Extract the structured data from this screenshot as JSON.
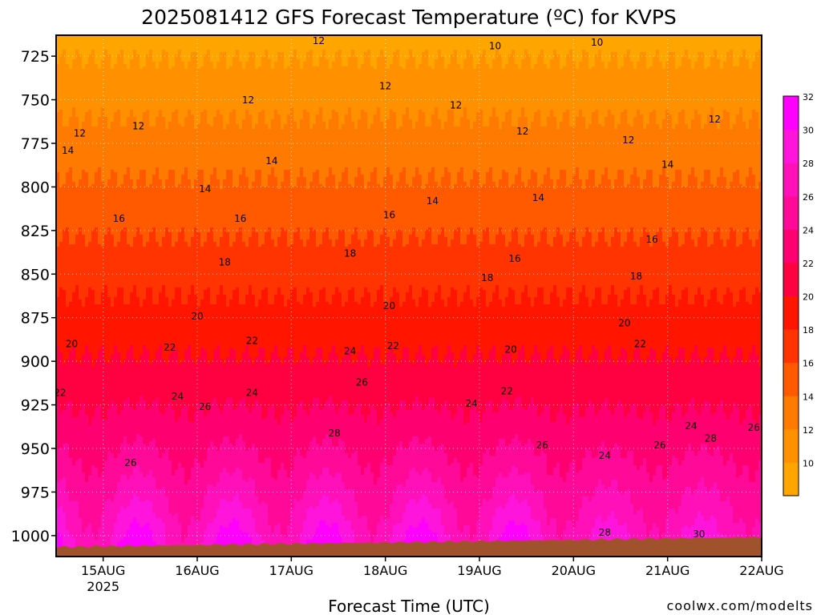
{
  "chart_data": {
    "type": "heatmap",
    "title": "2025081412 GFS Forecast Temperature (ºC) for KVPS",
    "xlabel": "Forecast Time (UTC)",
    "ylabel": "",
    "x_ticks": [
      {
        "label": "15AUG",
        "sub": "2025",
        "hours_since_init": 12
      },
      {
        "label": "16AUG",
        "sub": "",
        "hours_since_init": 36
      },
      {
        "label": "17AUG",
        "sub": "",
        "hours_since_init": 60
      },
      {
        "label": "18AUG",
        "sub": "",
        "hours_since_init": 84
      },
      {
        "label": "19AUG",
        "sub": "",
        "hours_since_init": 108
      },
      {
        "label": "20AUG",
        "sub": "",
        "hours_since_init": 132
      },
      {
        "label": "21AUG",
        "sub": "",
        "hours_since_init": 156
      },
      {
        "label": "22AUG",
        "sub": "",
        "hours_since_init": 180
      }
    ],
    "xlim_hours": [
      0,
      180
    ],
    "y_ticks": [
      725,
      750,
      775,
      800,
      825,
      850,
      875,
      900,
      925,
      950,
      975,
      1000
    ],
    "ylim": [
      1012,
      713
    ],
    "grid": true,
    "colorbar": {
      "labels": [
        10,
        12,
        14,
        16,
        18,
        20,
        22,
        24,
        26,
        28,
        30,
        32
      ],
      "colors": [
        "#ffa500",
        "#ff9100",
        "#ff7a00",
        "#ff5a00",
        "#ff3400",
        "#ff1500",
        "#ff0040",
        "#ff0070",
        "#ff0a98",
        "#ff10b8",
        "#ff14dc",
        "#ff00ff"
      ]
    },
    "contour_labels": [
      {
        "v": "12",
        "h": 67,
        "p": 718
      },
      {
        "v": "10",
        "h": 112,
        "p": 721
      },
      {
        "v": "10",
        "h": 138,
        "p": 719
      },
      {
        "v": "12",
        "h": 6,
        "p": 771
      },
      {
        "v": "12",
        "h": 21,
        "p": 767
      },
      {
        "v": "12",
        "h": 49,
        "p": 752
      },
      {
        "v": "12",
        "h": 84,
        "p": 744
      },
      {
        "v": "12",
        "h": 102,
        "p": 755
      },
      {
        "v": "12",
        "h": 119,
        "p": 770
      },
      {
        "v": "12",
        "h": 146,
        "p": 775
      },
      {
        "v": "12",
        "h": 168,
        "p": 763
      },
      {
        "v": "12",
        "h": 195,
        "p": 749
      },
      {
        "v": "14",
        "h": 3,
        "p": 781
      },
      {
        "v": "14",
        "h": 55,
        "p": 787
      },
      {
        "v": "14",
        "h": 38,
        "p": 803
      },
      {
        "v": "14",
        "h": 96,
        "p": 810
      },
      {
        "v": "14",
        "h": 123,
        "p": 808
      },
      {
        "v": "14",
        "h": 156,
        "p": 789
      },
      {
        "v": "14",
        "h": 191,
        "p": 796
      },
      {
        "v": "16",
        "h": 16,
        "p": 820
      },
      {
        "v": "16",
        "h": 47,
        "p": 820
      },
      {
        "v": "16",
        "h": 85,
        "p": 818
      },
      {
        "v": "16",
        "h": 117,
        "p": 843
      },
      {
        "v": "16",
        "h": 152,
        "p": 832
      },
      {
        "v": "16",
        "h": 185,
        "p": 816
      },
      {
        "v": "18",
        "h": 43,
        "p": 845
      },
      {
        "v": "18",
        "h": 75,
        "p": 840
      },
      {
        "v": "18",
        "h": 110,
        "p": 854
      },
      {
        "v": "18",
        "h": 148,
        "p": 853
      },
      {
        "v": "18",
        "h": 185,
        "p": 838
      },
      {
        "v": "20",
        "h": 4,
        "p": 892
      },
      {
        "v": "20",
        "h": 36,
        "p": 876
      },
      {
        "v": "20",
        "h": 85,
        "p": 870
      },
      {
        "v": "20",
        "h": 116,
        "p": 895
      },
      {
        "v": "20",
        "h": 145,
        "p": 880
      },
      {
        "v": "20",
        "h": 189,
        "p": 877
      },
      {
        "v": "22",
        "h": 1,
        "p": 920
      },
      {
        "v": "22",
        "h": 29,
        "p": 894
      },
      {
        "v": "22",
        "h": 50,
        "p": 890
      },
      {
        "v": "22",
        "h": 86,
        "p": 893
      },
      {
        "v": "22",
        "h": 115,
        "p": 919
      },
      {
        "v": "22",
        "h": 149,
        "p": 892
      },
      {
        "v": "22",
        "h": 191,
        "p": 893
      },
      {
        "v": "24",
        "h": 31,
        "p": 922
      },
      {
        "v": "24",
        "h": 50,
        "p": 920
      },
      {
        "v": "24",
        "h": 75,
        "p": 896
      },
      {
        "v": "24",
        "h": 106,
        "p": 926
      },
      {
        "v": "24",
        "h": 140,
        "p": 956
      },
      {
        "v": "24",
        "h": 162,
        "p": 939
      },
      {
        "v": "24",
        "h": 198,
        "p": 940
      },
      {
        "v": "26",
        "h": 19,
        "p": 960
      },
      {
        "v": "26",
        "h": 38,
        "p": 928
      },
      {
        "v": "26",
        "h": 78,
        "p": 914
      },
      {
        "v": "26",
        "h": 124,
        "p": 950
      },
      {
        "v": "26",
        "h": 154,
        "p": 950
      },
      {
        "v": "26",
        "h": 178,
        "p": 940
      },
      {
        "v": "26",
        "h": 198,
        "p": 956
      },
      {
        "v": "28",
        "h": 71,
        "p": 943
      },
      {
        "v": "28",
        "h": 140,
        "p": 1000
      },
      {
        "v": "28",
        "h": 167,
        "p": 946
      },
      {
        "v": "28",
        "h": 195,
        "p": 976
      },
      {
        "v": "30",
        "h": 164,
        "p": 1001
      },
      {
        "v": "30",
        "h": 195,
        "p": 998
      }
    ]
  },
  "credit": "coolwx.com/modelts",
  "colors": {
    "terrain": "#a0522d",
    "frame": "#000000",
    "grid": "#ffffff",
    "credit": "#cc3333"
  }
}
